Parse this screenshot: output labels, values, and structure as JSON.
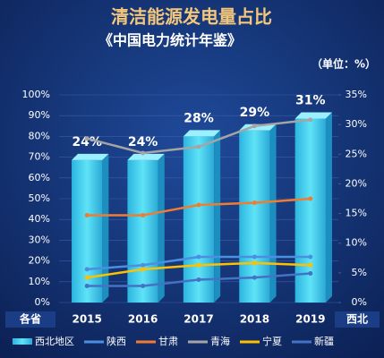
{
  "chart_data": {
    "type": "bar_line",
    "title": "清洁能源发电量占比",
    "subtitle": "《中国电力统计年鉴》",
    "unit": "（单位：%）",
    "y_label": "各省",
    "y2_label": "西北",
    "categories": [
      "2015",
      "2016",
      "2017",
      "2018",
      "2019"
    ],
    "series": [
      {
        "name": "西北地区",
        "type": "bar",
        "axis": "y2",
        "color": "#3fd0ec",
        "values": [
          24,
          24,
          28,
          29,
          31
        ],
        "value_labels": [
          "24%",
          "24%",
          "28%",
          "29%",
          "31%"
        ]
      },
      {
        "name": "陕西",
        "type": "line",
        "color": "#4a8fe0",
        "values": [
          16,
          18,
          22,
          22,
          22
        ]
      },
      {
        "name": "甘肃",
        "type": "line",
        "color": "#ef7d31",
        "values": [
          42,
          42,
          47,
          48,
          50
        ]
      },
      {
        "name": "青海",
        "type": "line",
        "color": "#a5a5a5",
        "values": [
          79,
          72,
          75,
          85,
          88
        ]
      },
      {
        "name": "宁夏",
        "type": "line",
        "color": "#ffc000",
        "values": [
          12,
          16,
          18,
          19,
          18
        ]
      },
      {
        "name": "新疆",
        "type": "line",
        "color": "#4472c4",
        "values": [
          8,
          8,
          11,
          12,
          14
        ]
      }
    ],
    "ylim": [
      0,
      100
    ],
    "yticks": [
      {
        "value": 0,
        "label": "0%"
      },
      {
        "value": 10,
        "label": "10%"
      },
      {
        "value": 20,
        "label": "20%"
      },
      {
        "value": 30,
        "label": "30%"
      },
      {
        "value": 40,
        "label": "40%"
      },
      {
        "value": 50,
        "label": "50%"
      },
      {
        "value": 60,
        "label": "60%"
      },
      {
        "value": 70,
        "label": "70%"
      },
      {
        "value": 80,
        "label": "80%"
      },
      {
        "value": 90,
        "label": "90%"
      },
      {
        "value": 100,
        "label": "100%"
      }
    ],
    "y2lim": [
      0,
      35
    ],
    "y2ticks": [
      {
        "value": 0,
        "label": "0%"
      },
      {
        "value": 5,
        "label": "5%"
      },
      {
        "value": 10,
        "label": "10%"
      },
      {
        "value": 15,
        "label": "15%"
      },
      {
        "value": 20,
        "label": "20%"
      },
      {
        "value": 25,
        "label": "25%"
      },
      {
        "value": 30,
        "label": "30%"
      },
      {
        "value": 35,
        "label": "35%"
      }
    ],
    "grid": true
  }
}
